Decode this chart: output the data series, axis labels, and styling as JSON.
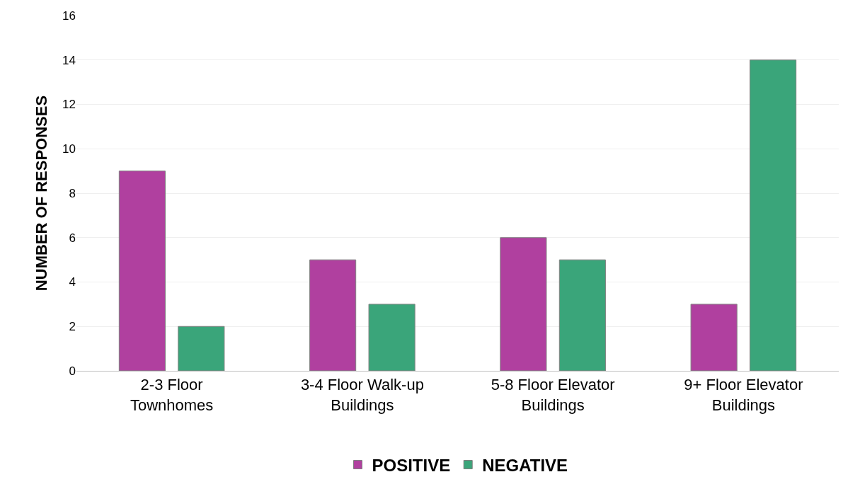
{
  "chart_data": {
    "type": "bar",
    "ylabel": "NUMBER OF RESPONSES",
    "categories": [
      "2-3 Floor Townhomes",
      "3-4 Floor Walk-up Buildings",
      "5-8 Floor Elevator Buildings",
      "9+ Floor Elevator Buildings"
    ],
    "series": [
      {
        "name": "POSITIVE",
        "color": "#b0409f",
        "values": [
          9,
          5,
          6,
          3
        ]
      },
      {
        "name": "NEGATIVE",
        "color": "#3aa57a",
        "values": [
          2,
          3,
          5,
          14
        ]
      }
    ],
    "ylim": [
      0,
      16
    ],
    "yticks": [
      0,
      2,
      4,
      6,
      8,
      10,
      12,
      14,
      16
    ],
    "grid": "y",
    "legend": "bottom"
  }
}
